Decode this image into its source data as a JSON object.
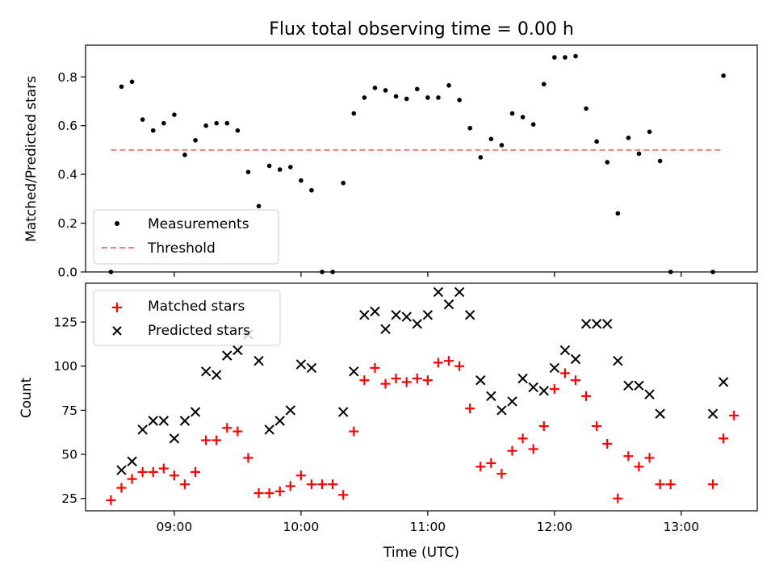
{
  "chart_data": [
    {
      "type": "scatter",
      "title": "Flux total observing time = 0.00 h",
      "xlabel": "",
      "ylabel": "Matched/Predicted stars",
      "xlim_hours": [
        8.3,
        13.6
      ],
      "ylim": [
        0,
        0.93
      ],
      "yticks": [
        0.0,
        0.2,
        0.4,
        0.6,
        0.8
      ],
      "ytick_labels": [
        "0.0",
        "0.2",
        "0.4",
        "0.6",
        "0.8"
      ],
      "legend_position": "lower-left",
      "series": [
        {
          "name": "Measurements",
          "marker": "dot",
          "color": "#000000",
          "x": [
            "08:30",
            "08:35",
            "08:40",
            "08:45",
            "08:50",
            "08:55",
            "09:00",
            "09:05",
            "09:10",
            "09:15",
            "09:20",
            "09:25",
            "09:30",
            "09:35",
            "09:40",
            "09:45",
            "09:50",
            "09:55",
            "10:00",
            "10:05",
            "10:10",
            "10:15",
            "10:20",
            "10:25",
            "10:30",
            "10:35",
            "10:40",
            "10:45",
            "10:50",
            "10:55",
            "11:00",
            "11:05",
            "11:10",
            "11:15",
            "11:20",
            "11:25",
            "11:30",
            "11:35",
            "11:40",
            "11:45",
            "11:50",
            "11:55",
            "12:00",
            "12:05",
            "12:10",
            "12:15",
            "12:20",
            "12:25",
            "12:30",
            "12:35",
            "12:40",
            "12:45",
            "12:50",
            "12:55",
            "13:15",
            "13:20"
          ],
          "y": [
            0.0,
            0.76,
            0.78,
            0.625,
            0.58,
            0.61,
            0.645,
            0.48,
            0.54,
            0.6,
            0.61,
            0.61,
            0.58,
            0.41,
            0.27,
            0.435,
            0.42,
            0.43,
            0.375,
            0.335,
            0.0,
            0.0,
            0.365,
            0.65,
            0.715,
            0.755,
            0.745,
            0.72,
            0.71,
            0.75,
            0.715,
            0.715,
            0.765,
            0.705,
            0.59,
            0.47,
            0.545,
            0.52,
            0.65,
            0.635,
            0.605,
            0.77,
            0.88,
            0.88,
            0.885,
            0.67,
            0.535,
            0.45,
            0.24,
            0.55,
            0.485,
            0.575,
            0.455,
            0.0,
            0.0,
            0.805
          ]
        },
        {
          "name": "Threshold",
          "style": "dashed-line",
          "color": "#f08080",
          "x": [
            "08:30",
            "13:20"
          ],
          "y": [
            0.5,
            0.5
          ]
        }
      ]
    },
    {
      "type": "scatter",
      "title": "",
      "xlabel": "Time (UTC)",
      "ylabel": "Count",
      "xlim_hours": [
        8.3,
        13.6
      ],
      "ylim": [
        18,
        147
      ],
      "yticks": [
        25,
        50,
        75,
        100,
        125
      ],
      "ytick_labels": [
        "25",
        "50",
        "75",
        "100",
        "125"
      ],
      "xticks": [
        "09:00",
        "10:00",
        "11:00",
        "12:00",
        "13:00"
      ],
      "legend_position": "upper-left",
      "series": [
        {
          "name": "Matched stars",
          "marker": "plus",
          "color": "#ff0000",
          "x": [
            "08:30",
            "08:35",
            "08:40",
            "08:45",
            "08:50",
            "08:55",
            "09:00",
            "09:05",
            "09:10",
            "09:15",
            "09:20",
            "09:25",
            "09:30",
            "09:35",
            "09:40",
            "09:45",
            "09:50",
            "09:55",
            "10:00",
            "10:05",
            "10:10",
            "10:15",
            "10:20",
            "10:25",
            "10:30",
            "10:35",
            "10:40",
            "10:45",
            "10:50",
            "10:55",
            "11:00",
            "11:05",
            "11:10",
            "11:15",
            "11:20",
            "11:25",
            "11:30",
            "11:35",
            "11:40",
            "11:45",
            "11:50",
            "11:55",
            "12:00",
            "12:05",
            "12:10",
            "12:15",
            "12:20",
            "12:25",
            "12:30",
            "12:35",
            "12:40",
            "12:45",
            "12:50",
            "12:55",
            "13:15",
            "13:20",
            "13:25"
          ],
          "y": [
            24,
            31,
            36,
            40,
            40,
            42,
            38,
            33,
            40,
            58,
            58,
            65,
            63,
            48,
            28,
            28,
            29,
            32,
            38,
            33,
            33,
            33,
            27,
            63,
            92,
            99,
            90,
            93,
            91,
            93,
            92,
            102,
            103,
            100,
            76,
            43,
            45,
            39,
            52,
            59,
            53,
            66,
            87,
            96,
            92,
            83,
            66,
            56,
            25,
            49,
            43,
            48,
            33,
            33,
            33,
            59,
            72
          ]
        },
        {
          "name": "Predicted stars",
          "marker": "x",
          "color": "#000000",
          "x": [
            "08:35",
            "08:40",
            "08:45",
            "08:50",
            "08:55",
            "09:00",
            "09:05",
            "09:10",
            "09:15",
            "09:20",
            "09:25",
            "09:30",
            "09:35",
            "09:40",
            "09:45",
            "09:50",
            "09:55",
            "10:00",
            "10:05",
            "10:20",
            "10:25",
            "10:30",
            "10:35",
            "10:40",
            "10:45",
            "10:50",
            "10:55",
            "11:00",
            "11:05",
            "11:10",
            "11:15",
            "11:20",
            "11:25",
            "11:30",
            "11:35",
            "11:40",
            "11:45",
            "11:50",
            "11:55",
            "12:00",
            "12:05",
            "12:10",
            "12:15",
            "12:20",
            "12:25",
            "12:30",
            "12:35",
            "12:40",
            "12:45",
            "12:50",
            "13:15",
            "13:20"
          ],
          "y": [
            41,
            46,
            64,
            69,
            69,
            59,
            69,
            74,
            97,
            95,
            106,
            109,
            118,
            103,
            64,
            69,
            75,
            101,
            99,
            74,
            97,
            129,
            131,
            121,
            129,
            128,
            124,
            129,
            142,
            135,
            142,
            129,
            92,
            83,
            75,
            80,
            93,
            88,
            86,
            99,
            109,
            104,
            124,
            124,
            124,
            103,
            89,
            89,
            84,
            73,
            73,
            91
          ]
        }
      ]
    }
  ]
}
